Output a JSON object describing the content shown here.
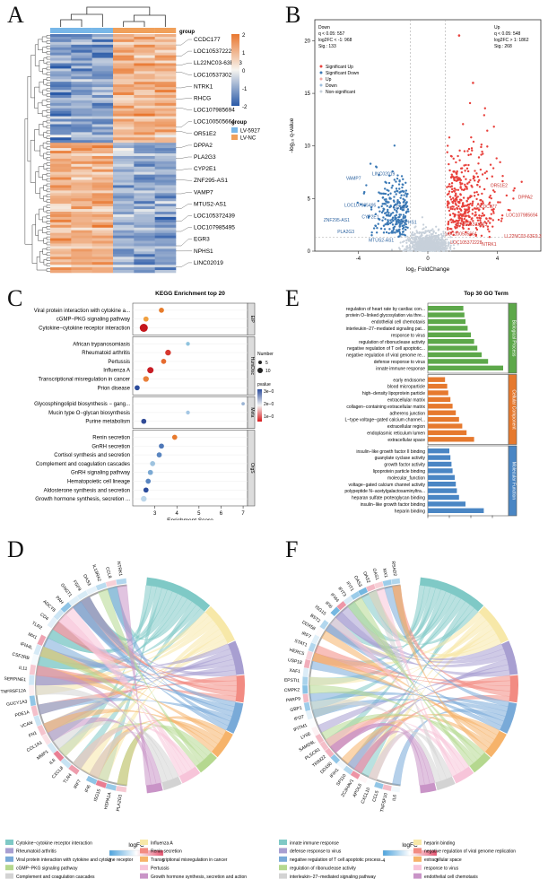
{
  "panels": {
    "a": "A",
    "b": "B",
    "c": "C",
    "d": "D",
    "e": "E",
    "f": "F"
  },
  "colors": {
    "up": "#e8413c",
    "down": "#3b79b5",
    "nonsig": "#c7d0da",
    "lv5927": "#78b7e8",
    "lvnc": "#f0a05a",
    "heat_low": "#2a5aa8",
    "heat_mid": "#f7f5f0",
    "heat_high": "#e9772f",
    "bp": "#5da84a",
    "cc": "#e6792e",
    "mf": "#4a86c4",
    "facet": "#dcdcdc"
  },
  "chart_data": [
    {
      "id": "A",
      "type": "heatmap",
      "genes": [
        "CCDC177",
        "LOC105372228",
        "LL22NC03-63E9.3",
        "LOC105373023",
        "NTRK1",
        "RHCG",
        "LOC107985694",
        "LOC100505664",
        "OR51E2",
        "DPPA2",
        "PLA2G3",
        "CYP2E1",
        "ZNF295-AS1",
        "VAMP7",
        "MTUS2-AS1",
        "LOC105372439",
        "LOC107985495",
        "EGR3",
        "NPHS1",
        "LINC02019"
      ],
      "groups": [
        "LV-5927",
        "LV-NC"
      ],
      "legend_title": "group",
      "colorbar": {
        "ticks": [
          "2",
          "1",
          "0",
          "-1",
          "-2"
        ],
        "range": [
          -2,
          2
        ]
      }
    },
    {
      "id": "B",
      "type": "scatter",
      "xlabel": "log₂ FoldChange",
      "ylabel": "-log₁₀ q-value",
      "xlim": [
        -6.5,
        6.5
      ],
      "ylim": [
        0,
        22
      ],
      "xticks": [
        "-4",
        "0",
        "4"
      ],
      "yticks": [
        "0",
        "5",
        "10",
        "15",
        "20"
      ],
      "down_box": [
        "Down",
        "q < 0.05: 557",
        "log2FC < -1: 968",
        "Sig.: 133"
      ],
      "up_box": [
        "Up",
        "q < 0.05: 548",
        "log2FC > 1: 1862",
        "Sig.: 268"
      ],
      "legend": [
        "Significant Up",
        "Significant Down",
        "Up",
        "Down",
        "Non-significant"
      ],
      "labels_down": [
        "LINC02019",
        "VAMP7",
        "LOC107985495",
        "ZNF295-AS1",
        "EGR3",
        "NPHS1",
        "CYP2E1",
        "PLA2G3",
        "MTUS2-AS1"
      ],
      "labels_up": [
        "OR51E2",
        "DPPA2",
        "CCDC177",
        "LOC107985694",
        "LOC105373023",
        "LOC100505664",
        "LL22NC03-63E9.3",
        "LOC105372228",
        "NTRK1"
      ]
    },
    {
      "id": "C",
      "type": "scatter",
      "title": "KEGG Enrichment top 20",
      "xlabel": "Enrichment Score",
      "xticks": [
        "3",
        "4",
        "5",
        "6",
        "7"
      ],
      "xlim": [
        2,
        7.2
      ],
      "facets": [
        {
          "name": "EIP",
          "terms": [
            [
              "Viral protein interaction with cytokine a...",
              3.3,
              "#e77c2b",
              5
            ],
            [
              "cGMP−PKG signaling pathway",
              2.6,
              "#f0a040",
              5
            ],
            [
              "Cytokine−cytokine receptor interaction",
              2.5,
              "#c4161c",
              10
            ]
          ]
        },
        {
          "name": "HumDisc",
          "terms": [
            [
              "African trypanosomiasis",
              4.5,
              "#8fc3de",
              3
            ],
            [
              "Rheumatoid arthritis",
              3.6,
              "#d7382f",
              6
            ],
            [
              "Pertussis",
              3.4,
              "#e66b2f",
              5
            ],
            [
              "Influenza A",
              2.8,
              "#c81d25",
              7
            ],
            [
              "Transcriptional misregulation in cancer",
              2.6,
              "#e9803a",
              6
            ],
            [
              "Prion disease",
              2.2,
              "#2c4c9c",
              5
            ]
          ]
        },
        {
          "name": "Meta",
          "terms": [
            [
              "Glycosphingolipid biosynthesis − gang...",
              7.0,
              "#9bb4d4",
              2
            ],
            [
              "Mucin type O−glycan biosynthesis",
              4.5,
              "#a4c7e4",
              3
            ],
            [
              "Purine metabolism",
              2.5,
              "#314b96",
              5
            ]
          ]
        },
        {
          "name": "OrgS",
          "terms": [
            [
              "Renin secretion",
              3.9,
              "#e87b2f",
              5
            ],
            [
              "GnRH secretion",
              3.3,
              "#4f78b8",
              5
            ],
            [
              "Cortisol synthesis and secretion",
              3.2,
              "#5a86c0",
              5
            ],
            [
              "Complement and coagulation cascades",
              2.9,
              "#9ec3df",
              5
            ],
            [
              "GnRH signaling pathway",
              2.8,
              "#7ba9d3",
              5
            ],
            [
              "Hematopoietic cell lineage",
              2.7,
              "#5a86c0",
              5
            ],
            [
              "Aldosterone synthesis and secretion",
              2.6,
              "#2c4c9c",
              5
            ],
            [
              "Growth hormone synthesis, secretion ...",
              2.5,
              "#bcd6ea",
              6
            ]
          ]
        }
      ],
      "size_legend": {
        "title": "Number",
        "values": [
          "5",
          "10"
        ]
      },
      "color_legend": {
        "title": "pvalue",
        "ticks": [
          "3e−02",
          "2e−02",
          "1e−02"
        ]
      }
    },
    {
      "id": "E",
      "type": "bar",
      "title": "Top 30 GO Term",
      "xlabel": "-log₁₀ p-value",
      "xticks": [
        "0",
        "2",
        "4",
        "6"
      ],
      "xlim": [
        0,
        7.5
      ],
      "groups": [
        {
          "name": "Biological Process",
          "terms": [
            [
              "regulation of heart rate by cardiac con...",
              3.3
            ],
            [
              "protein O−linked glycosylation via thre...",
              3.4
            ],
            [
              "endothelial cell chemotaxis",
              3.5
            ],
            [
              "interleukin−27−mediated signaling pat...",
              3.7
            ],
            [
              "response to virus",
              4.0
            ],
            [
              "regulation of ribonuclease activity",
              4.3
            ],
            [
              "negative regulation of T cell apoptotic...",
              4.6
            ],
            [
              "negative regulation of viral genome re...",
              5.0
            ],
            [
              "defense response to virus",
              5.6
            ],
            [
              "innate immune response",
              7.0
            ]
          ]
        },
        {
          "name": "Cellular Component",
          "terms": [
            [
              "early endosome",
              1.6
            ],
            [
              "blood microparticle",
              1.8
            ],
            [
              "high−density lipoprotein particle",
              1.9
            ],
            [
              "extracellular matrix",
              2.1
            ],
            [
              "collagen−containing extracellular matrix",
              2.3
            ],
            [
              "adherens junction",
              2.6
            ],
            [
              "L−type voltage−gated calcium channel...",
              2.9
            ],
            [
              "extracellular region",
              3.2
            ],
            [
              "endoplasmic reticulum lumen",
              3.6
            ],
            [
              "extracellular space",
              4.3
            ]
          ]
        },
        {
          "name": "Molecular Function",
          "terms": [
            [
              "insulin−like growth factor II binding",
              2.0
            ],
            [
              "guanylate cyclase activity",
              2.1
            ],
            [
              "growth factor activity",
              2.2
            ],
            [
              "lipoprotein particle binding",
              2.3
            ],
            [
              "molecular_function",
              2.5
            ],
            [
              "voltage−gated calcium channel activity",
              2.6
            ],
            [
              "polypeptide N−acetylgalactosaminyltra...",
              2.7
            ],
            [
              "heparan sulfate proteoglycan binding",
              2.9
            ],
            [
              "insulin−like growth factor binding",
              3.5
            ],
            [
              "heparin binding",
              5.2
            ]
          ]
        }
      ]
    },
    {
      "id": "D",
      "type": "chord",
      "genes": [
        "NTRK1",
        "CCL8",
        "IL13RA2",
        "OAS3",
        "FGF9",
        "GNGT1",
        "PAH",
        "ADCY8",
        "CD4",
        "TLR2",
        "MX1",
        "IFI44L",
        "CSF2RB",
        "IL11",
        "SERPINE1",
        "TNFRSF12A",
        "GUCY1A3",
        "PDE1A",
        "VCAN",
        "FN1",
        "COL1A1",
        "MMP1",
        "IL6",
        "CXCL8",
        "TLR4",
        "IRF7",
        "IFI6",
        "ISG15",
        "HSPA1A",
        "PLA2G3"
      ],
      "colorbar": {
        "title": "logFC",
        "min": "-3",
        "max": "5"
      },
      "legend": [
        [
          "Cytokine−cytokine receptor interaction",
          "#7fc9c6"
        ],
        [
          "Influenza A",
          "#f7e8a8"
        ],
        [
          "Rheumatoid arthritis",
          "#a89fd1"
        ],
        [
          "Renin secretion",
          "#f28b82"
        ],
        [
          "Viral protein interaction with cytokine and cytokine receptor",
          "#79aad8"
        ],
        [
          "Transcriptional misregulation in cancer",
          "#f6b36a"
        ],
        [
          "cGMP−PKG signaling pathway",
          "#b5d88f"
        ],
        [
          "Pertussis",
          "#f7c4d9"
        ],
        [
          "Complement and coagulation cascades",
          "#d3d3d3"
        ],
        [
          "Growth hormone synthesis, secretion and action",
          "#c994c7"
        ]
      ]
    },
    {
      "id": "F",
      "type": "chord",
      "genes": [
        "RSAD2",
        "MX1",
        "OAS1",
        "OAS2",
        "OAS3",
        "IFIT1",
        "IFIT3",
        "IFI44",
        "IFI6",
        "ISG15",
        "BST2",
        "DDX58",
        "IRF7",
        "STAT1",
        "HERC5",
        "USP18",
        "XAF1",
        "EPSTI1",
        "CMPK2",
        "PARP9",
        "GBP1",
        "IFI27",
        "IFITM1",
        "LY6E",
        "SAMD9L",
        "PLSCR1",
        "TRIM22",
        "DDX60",
        "IFIH1",
        "SP110",
        "ZC3HAV1",
        "APOL6",
        "CXCL10",
        "CCL5",
        "TNFSF10",
        "IL6"
      ],
      "colorbar": {
        "title": "logFC",
        "min": "-4",
        "max": "3"
      },
      "legend": [
        [
          "innate immune response",
          "#7fc9c6"
        ],
        [
          "heparin binding",
          "#f7e8a8"
        ],
        [
          "defense response to virus",
          "#a89fd1"
        ],
        [
          "negative regulation of viral genome replication",
          "#f28b82"
        ],
        [
          "negative regulation of T cell apoptotic process",
          "#79aad8"
        ],
        [
          "extracellular space",
          "#f6b36a"
        ],
        [
          "regulation of ribonuclease activity",
          "#b5d88f"
        ],
        [
          "response to virus",
          "#f7c4d9"
        ],
        [
          "interleukin−27−mediated signaling pathway",
          "#d3d3d3"
        ],
        [
          "endothelial cell chemotaxis",
          "#c994c7"
        ]
      ]
    }
  ]
}
